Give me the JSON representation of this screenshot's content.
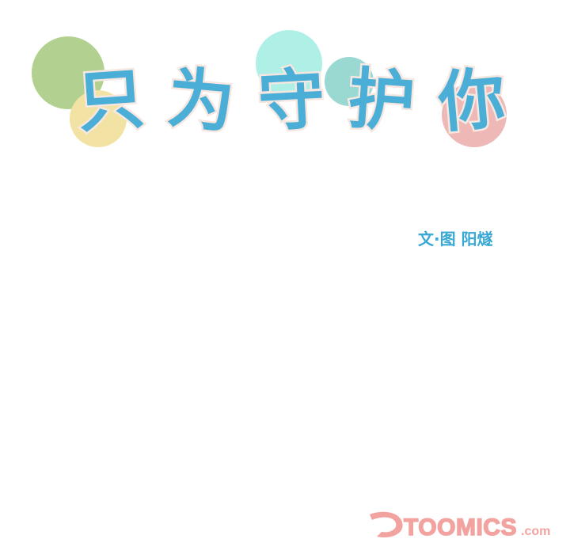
{
  "title": {
    "text": "只为守护你",
    "chars": [
      "只",
      "为",
      "守",
      "护",
      "你"
    ]
  },
  "credit": {
    "text": "文·图 阳燧"
  },
  "logo": {
    "text": "TOOMICS.com"
  },
  "colors": {
    "title_fill": "#4aaed6",
    "title_outline": "#f6e7e1",
    "credit": "#3aa8d4",
    "logo": "#f2a3a0",
    "circle_green": "#b2d08f",
    "circle_yellow": "#f2e3a5",
    "circle_mint": "#aef0e6",
    "circle_teal": "#9ad8d2",
    "circle_pink": "#eeb8b6"
  }
}
